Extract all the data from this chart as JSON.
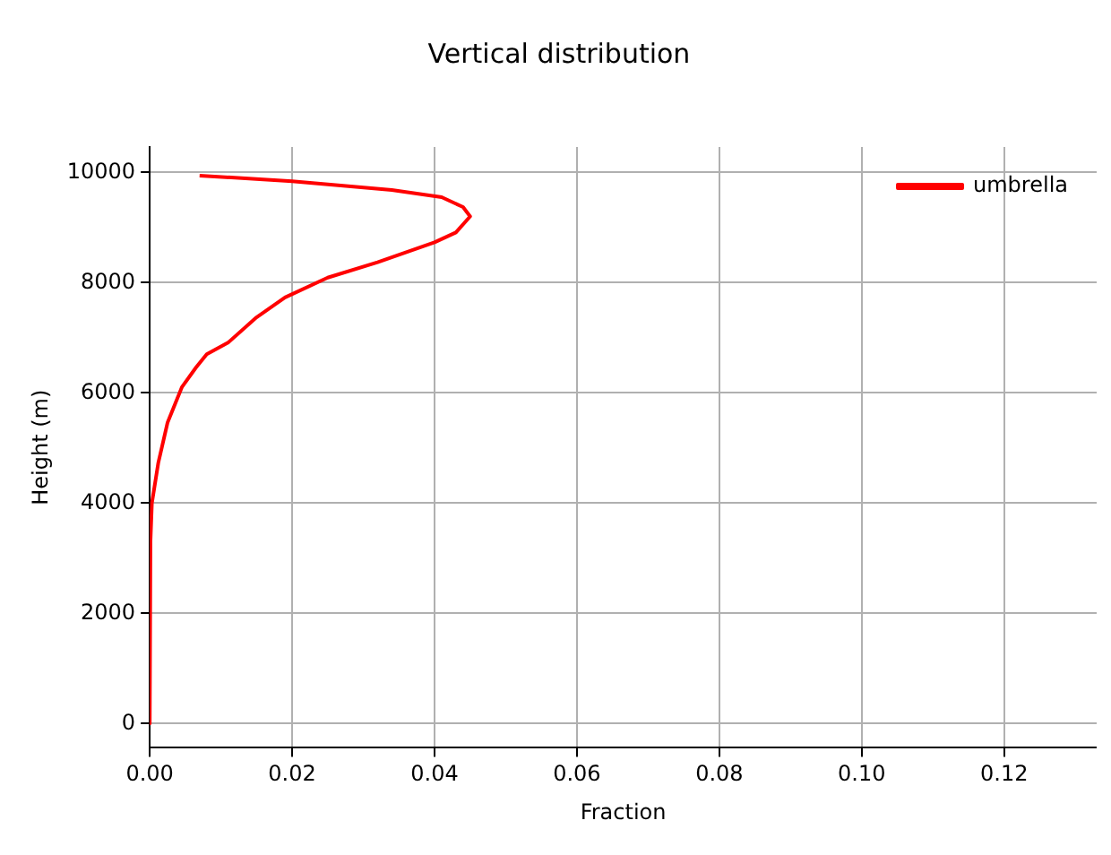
{
  "chart_data": {
    "type": "line",
    "title": "Vertical distribution",
    "xlabel": "Fraction",
    "ylabel": "Height (m)",
    "xlim": [
      0,
      0.133
    ],
    "xticks": [
      {
        "value": 0,
        "label": "0.00"
      },
      {
        "value": 0.02,
        "label": "0.02"
      },
      {
        "value": 0.04,
        "label": "0.04"
      },
      {
        "value": 0.06,
        "label": "0.06"
      },
      {
        "value": 0.08,
        "label": "0.08"
      },
      {
        "value": 0.1,
        "label": "0.10"
      },
      {
        "value": 0.12,
        "label": "0.12"
      }
    ],
    "ylim": [
      -440,
      10460
    ],
    "yticks": [
      0,
      2000,
      4000,
      6000,
      8000,
      10000
    ],
    "grid": true,
    "legend": "top right",
    "marker": "none",
    "line_style": "solid",
    "series": [
      {
        "name": "umbrella",
        "color": "#ff0000",
        "x": [
          0.007,
          0.02,
          0.034,
          0.041,
          0.044,
          0.045,
          0.043,
          0.04,
          0.032,
          0.025,
          0.019,
          0.015,
          0.011,
          0.008,
          0.0065,
          0.0045,
          0.0025,
          0.0012,
          0.0003,
          0.0001,
          0
        ],
        "values": [
          9940,
          9840,
          9680,
          9550,
          9370,
          9200,
          8910,
          8730,
          8370,
          8090,
          7730,
          7370,
          6910,
          6700,
          6460,
          6100,
          5460,
          4730,
          4000,
          3300,
          0
        ]
      }
    ]
  }
}
